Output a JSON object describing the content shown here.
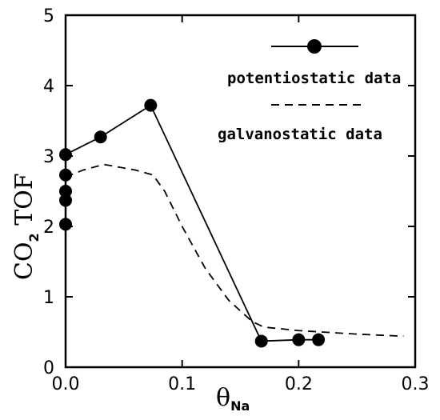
{
  "chart_data": {
    "type": "line",
    "xlabel": {
      "main": "θ",
      "sub": "Na"
    },
    "ylabel": {
      "part1": "CO",
      "sub": "2",
      "part2": " TOF"
    },
    "xlim": [
      0,
      0.3
    ],
    "ylim": [
      0,
      5
    ],
    "x_ticks": [
      "0.0",
      "0.1",
      "0.2",
      "0.3"
    ],
    "y_ticks": [
      "0",
      "1",
      "2",
      "3",
      "4",
      "5"
    ],
    "grid": false,
    "legend_position": "top-right",
    "series": [
      {
        "name": "potentiostatic data",
        "style": "solid-markers",
        "line_x": [
          0.0,
          0.03,
          0.073,
          0.168,
          0.2,
          0.217
        ],
        "line_y": [
          3.02,
          3.27,
          3.72,
          0.37,
          0.39,
          0.39
        ],
        "points": [
          {
            "x": 0.0,
            "y": 2.03
          },
          {
            "x": 0.0,
            "y": 2.37
          },
          {
            "x": 0.0,
            "y": 2.5
          },
          {
            "x": 0.0,
            "y": 2.73
          },
          {
            "x": 0.0,
            "y": 3.02
          },
          {
            "x": 0.03,
            "y": 3.27
          },
          {
            "x": 0.073,
            "y": 3.72
          },
          {
            "x": 0.168,
            "y": 0.37
          },
          {
            "x": 0.2,
            "y": 0.39
          },
          {
            "x": 0.217,
            "y": 0.39
          }
        ]
      },
      {
        "name": "galvanostatic data",
        "style": "dashed",
        "x": [
          0.0,
          0.015,
          0.033,
          0.06,
          0.075,
          0.085,
          0.1,
          0.12,
          0.14,
          0.16,
          0.17,
          0.2,
          0.25,
          0.29
        ],
        "y": [
          2.7,
          2.8,
          2.88,
          2.8,
          2.73,
          2.5,
          2.0,
          1.4,
          0.95,
          0.65,
          0.57,
          0.52,
          0.47,
          0.44
        ]
      }
    ]
  }
}
